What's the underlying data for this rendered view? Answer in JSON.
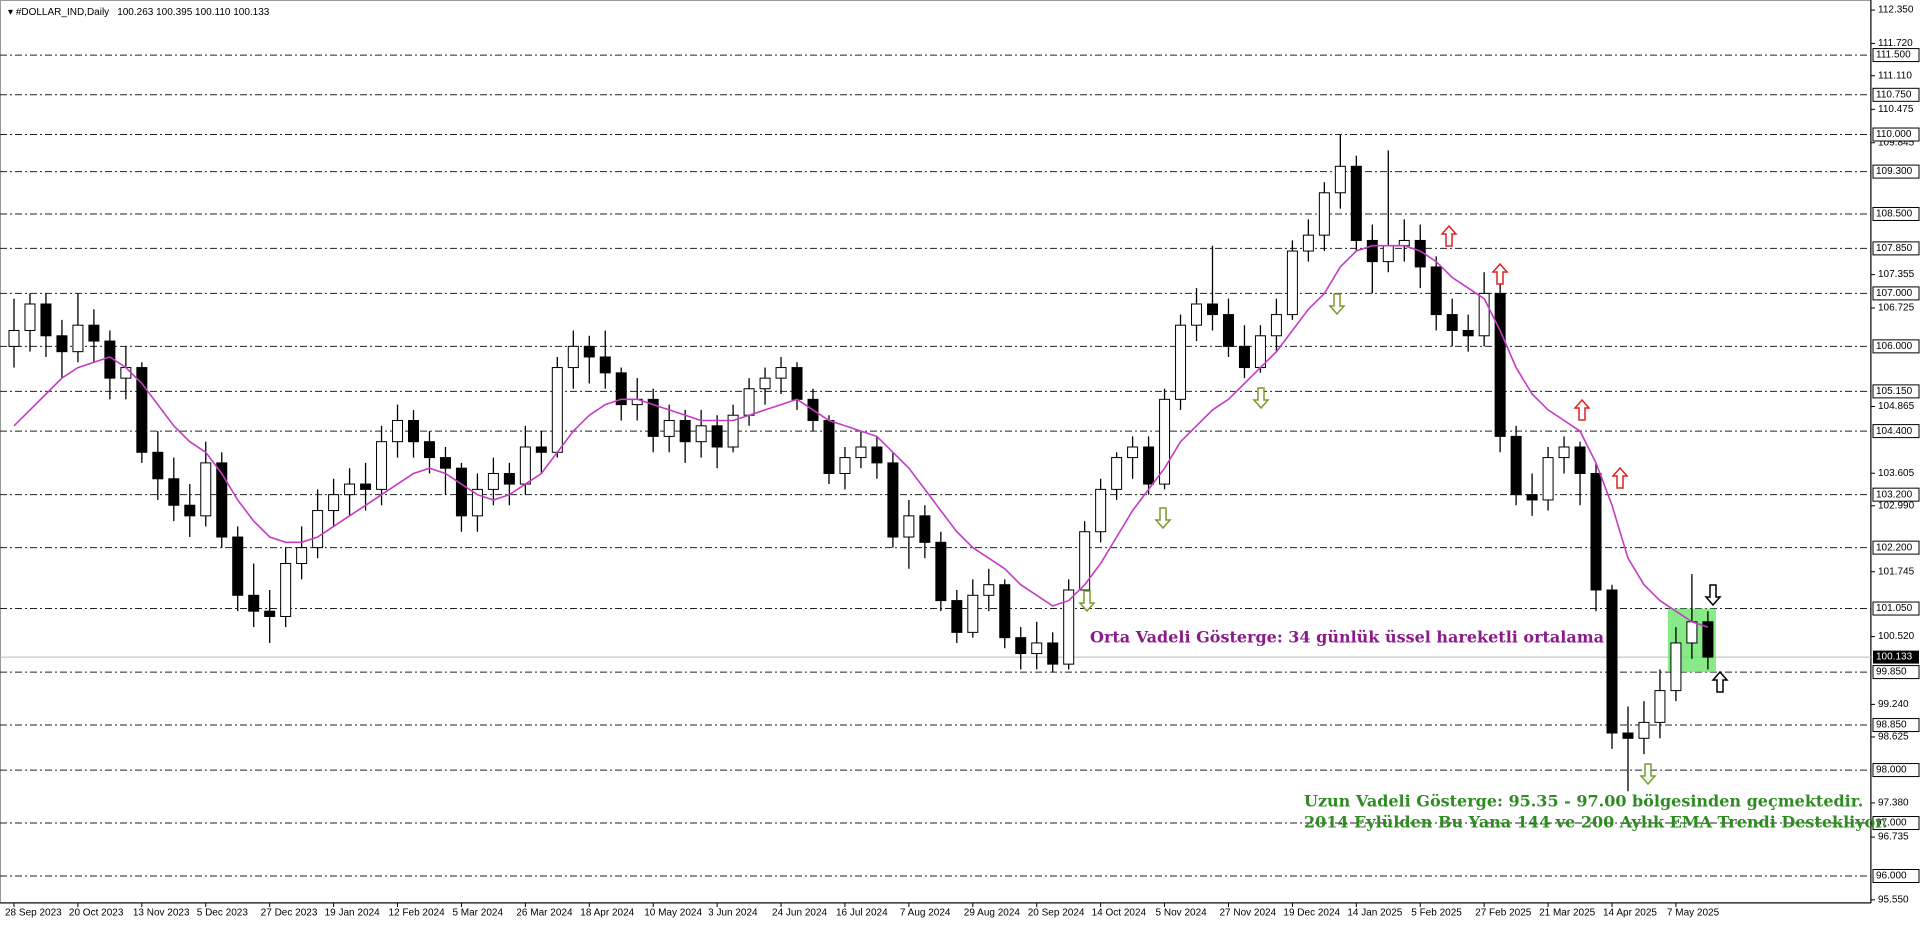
{
  "chart_data": {
    "type": "candlestick",
    "title": "#DOLLAR_IND,Daily",
    "subtitle": "100.263 100.395 100.110 100.133",
    "categories": [
      "28 Sep 2023",
      null,
      null,
      null,
      "20 Oct 2023",
      null,
      null,
      null,
      "13 Nov 2023",
      null,
      null,
      null,
      "5 Dec 2023",
      null,
      null,
      null,
      "27 Dec 2023",
      null,
      null,
      null,
      "19 Jan 2024",
      null,
      null,
      null,
      "12 Feb 2024",
      null,
      null,
      null,
      "5 Mar 2024",
      null,
      null,
      null,
      "26 Mar 2024",
      null,
      null,
      null,
      "18 Apr 2024",
      null,
      null,
      null,
      "10 May 2024",
      null,
      null,
      null,
      "3 Jun 2024",
      null,
      null,
      null,
      "24 Jun 2024",
      null,
      null,
      null,
      "16 Jul 2024",
      null,
      null,
      null,
      "7 Aug 2024",
      null,
      null,
      null,
      "29 Aug 2024",
      null,
      null,
      null,
      "20 Sep 2024",
      null,
      null,
      null,
      "14 Oct 2024",
      null,
      null,
      null,
      "5 Nov 2024",
      null,
      null,
      null,
      "27 Nov 2024",
      null,
      null,
      null,
      "19 Dec 2024",
      null,
      null,
      null,
      "14 Jan 2025",
      null,
      null,
      null,
      "5 Feb 2025",
      null,
      null,
      null,
      "27 Feb 2025",
      null,
      null,
      null,
      "21 Mar 2025",
      null,
      null,
      null,
      "14 Apr 2025",
      null,
      null,
      null,
      "7 May 2025",
      null,
      null
    ],
    "ohlc": [
      [
        106.0,
        106.9,
        105.6,
        106.3
      ],
      [
        106.3,
        107.0,
        105.9,
        106.8
      ],
      [
        106.8,
        107.0,
        105.8,
        106.2
      ],
      [
        106.2,
        106.5,
        105.4,
        105.9
      ],
      [
        105.9,
        107.0,
        105.7,
        106.4
      ],
      [
        106.4,
        106.7,
        105.7,
        106.1
      ],
      [
        106.1,
        106.3,
        105.0,
        105.4
      ],
      [
        105.4,
        106.0,
        105.0,
        105.6
      ],
      [
        105.6,
        105.7,
        103.8,
        104.0
      ],
      [
        104.0,
        104.4,
        103.1,
        103.5
      ],
      [
        103.5,
        103.9,
        102.7,
        103.0
      ],
      [
        103.0,
        103.4,
        102.4,
        102.8
      ],
      [
        102.8,
        104.2,
        102.6,
        103.8
      ],
      [
        103.8,
        104.0,
        102.2,
        102.4
      ],
      [
        102.4,
        102.6,
        101.0,
        101.3
      ],
      [
        101.3,
        101.9,
        100.7,
        101.0
      ],
      [
        101.0,
        101.4,
        100.4,
        100.9
      ],
      [
        100.9,
        102.2,
        100.7,
        101.9
      ],
      [
        101.9,
        102.6,
        101.6,
        102.2
      ],
      [
        102.2,
        103.3,
        102.0,
        102.9
      ],
      [
        102.9,
        103.5,
        102.6,
        103.2
      ],
      [
        103.2,
        103.7,
        102.8,
        103.4
      ],
      [
        103.4,
        103.8,
        102.9,
        103.3
      ],
      [
        103.3,
        104.5,
        103.0,
        104.2
      ],
      [
        104.2,
        104.9,
        103.9,
        104.6
      ],
      [
        104.6,
        104.8,
        103.9,
        104.2
      ],
      [
        104.2,
        104.4,
        103.6,
        103.9
      ],
      [
        103.9,
        104.1,
        103.2,
        103.7
      ],
      [
        103.7,
        103.8,
        102.5,
        102.8
      ],
      [
        102.8,
        103.6,
        102.5,
        103.3
      ],
      [
        103.3,
        103.9,
        103.0,
        103.6
      ],
      [
        103.6,
        103.8,
        103.0,
        103.4
      ],
      [
        103.4,
        104.5,
        103.2,
        104.1
      ],
      [
        104.1,
        104.4,
        103.6,
        104.0
      ],
      [
        104.0,
        105.8,
        103.9,
        105.6
      ],
      [
        105.6,
        106.3,
        105.2,
        106.0
      ],
      [
        106.0,
        106.2,
        105.3,
        105.8
      ],
      [
        105.8,
        106.3,
        105.2,
        105.5
      ],
      [
        105.5,
        105.6,
        104.6,
        104.9
      ],
      [
        104.9,
        105.4,
        104.6,
        105.0
      ],
      [
        105.0,
        105.2,
        104.0,
        104.3
      ],
      [
        104.3,
        104.9,
        104.0,
        104.6
      ],
      [
        104.6,
        104.8,
        103.8,
        104.2
      ],
      [
        104.2,
        104.8,
        103.9,
        104.5
      ],
      [
        104.5,
        104.7,
        103.7,
        104.1
      ],
      [
        104.1,
        104.9,
        104.0,
        104.7
      ],
      [
        104.7,
        105.4,
        104.5,
        105.2
      ],
      [
        105.2,
        105.6,
        104.9,
        105.4
      ],
      [
        105.4,
        105.8,
        105.1,
        105.6
      ],
      [
        105.6,
        105.7,
        104.8,
        105.0
      ],
      [
        105.0,
        105.2,
        104.4,
        104.6
      ],
      [
        104.6,
        104.7,
        103.4,
        103.6
      ],
      [
        103.6,
        104.1,
        103.3,
        103.9
      ],
      [
        103.9,
        104.4,
        103.7,
        104.1
      ],
      [
        104.1,
        104.3,
        103.5,
        103.8
      ],
      [
        103.8,
        104.0,
        102.2,
        102.4
      ],
      [
        102.4,
        103.1,
        101.8,
        102.8
      ],
      [
        102.8,
        103.0,
        102.0,
        102.3
      ],
      [
        102.3,
        102.5,
        101.0,
        101.2
      ],
      [
        101.2,
        101.4,
        100.4,
        100.6
      ],
      [
        100.6,
        101.6,
        100.5,
        101.3
      ],
      [
        101.3,
        101.8,
        101.0,
        101.5
      ],
      [
        101.5,
        101.6,
        100.3,
        100.5
      ],
      [
        100.5,
        100.7,
        99.9,
        100.2
      ],
      [
        100.2,
        100.8,
        99.9,
        100.4
      ],
      [
        100.4,
        100.6,
        99.85,
        100.0
      ],
      [
        100.0,
        101.6,
        99.9,
        101.4
      ],
      [
        101.4,
        102.7,
        101.2,
        102.5
      ],
      [
        102.5,
        103.5,
        102.3,
        103.3
      ],
      [
        103.3,
        104.0,
        103.1,
        103.9
      ],
      [
        103.9,
        104.3,
        103.5,
        104.1
      ],
      [
        104.1,
        104.3,
        103.2,
        103.4
      ],
      [
        103.4,
        105.2,
        103.3,
        105.0
      ],
      [
        105.0,
        106.6,
        104.8,
        106.4
      ],
      [
        106.4,
        107.1,
        106.1,
        106.8
      ],
      [
        106.8,
        107.9,
        106.3,
        106.6
      ],
      [
        106.6,
        106.9,
        105.8,
        106.0
      ],
      [
        106.0,
        106.4,
        105.4,
        105.6
      ],
      [
        105.6,
        106.4,
        105.5,
        106.2
      ],
      [
        106.2,
        106.9,
        105.9,
        106.6
      ],
      [
        106.6,
        108.0,
        106.5,
        107.8
      ],
      [
        107.8,
        108.4,
        107.6,
        108.1
      ],
      [
        108.1,
        109.1,
        107.8,
        108.9
      ],
      [
        108.9,
        110.0,
        108.6,
        109.4
      ],
      [
        109.4,
        109.6,
        107.8,
        108.0
      ],
      [
        108.0,
        108.3,
        107.0,
        107.6
      ],
      [
        107.6,
        109.7,
        107.4,
        107.9
      ],
      [
        107.9,
        108.4,
        107.6,
        108.0
      ],
      [
        108.0,
        108.3,
        107.1,
        107.5
      ],
      [
        107.5,
        107.7,
        106.3,
        106.6
      ],
      [
        106.6,
        106.9,
        106.0,
        106.3
      ],
      [
        106.3,
        106.6,
        105.9,
        106.2
      ],
      [
        106.2,
        107.4,
        106.0,
        107.0
      ],
      [
        107.0,
        107.2,
        104.0,
        104.3
      ],
      [
        104.3,
        104.5,
        103.0,
        103.2
      ],
      [
        103.2,
        103.6,
        102.8,
        103.1
      ],
      [
        103.1,
        104.1,
        102.9,
        103.9
      ],
      [
        103.9,
        104.3,
        103.6,
        104.1
      ],
      [
        104.1,
        104.2,
        103.0,
        103.6
      ],
      [
        103.6,
        103.8,
        101.0,
        101.4
      ],
      [
        101.4,
        101.5,
        98.4,
        98.7
      ],
      [
        98.7,
        99.2,
        97.6,
        98.6
      ],
      [
        98.6,
        99.3,
        98.3,
        98.9
      ],
      [
        98.9,
        99.9,
        98.6,
        99.5
      ],
      [
        99.5,
        100.7,
        99.3,
        100.4
      ],
      [
        100.4,
        101.7,
        100.1,
        100.8
      ],
      [
        100.8,
        101.0,
        99.9,
        100.133
      ]
    ],
    "ema": {
      "color": "#c43cc4",
      "values": [
        104.5,
        104.8,
        105.1,
        105.4,
        105.6,
        105.7,
        105.8,
        105.6,
        105.3,
        104.9,
        104.5,
        104.2,
        104.0,
        103.6,
        103.1,
        102.7,
        102.4,
        102.3,
        102.3,
        102.4,
        102.6,
        102.8,
        103.0,
        103.2,
        103.4,
        103.6,
        103.7,
        103.6,
        103.4,
        103.2,
        103.1,
        103.2,
        103.4,
        103.6,
        104.0,
        104.4,
        104.7,
        104.9,
        105.0,
        105.0,
        104.9,
        104.8,
        104.7,
        104.6,
        104.6,
        104.6,
        104.7,
        104.8,
        104.9,
        105.0,
        104.8,
        104.6,
        104.5,
        104.4,
        104.3,
        104.0,
        103.7,
        103.3,
        102.9,
        102.5,
        102.2,
        102.0,
        101.8,
        101.5,
        101.3,
        101.1,
        101.2,
        101.5,
        101.9,
        102.4,
        102.9,
        103.3,
        103.7,
        104.2,
        104.5,
        104.8,
        105.0,
        105.3,
        105.6,
        105.9,
        106.3,
        106.7,
        107.0,
        107.5,
        107.8,
        107.9,
        107.9,
        107.9,
        107.8,
        107.6,
        107.3,
        107.1,
        106.9,
        106.3,
        105.6,
        105.1,
        104.8,
        104.6,
        104.4,
        103.8,
        103.0,
        102.0,
        101.5,
        101.2,
        101.0,
        100.8,
        100.7
      ]
    },
    "ylim": [
      95.49,
      112.54
    ],
    "yticks": [
      {
        "value": 112.35,
        "label": "112.350"
      },
      {
        "value": 111.72,
        "label": "111.720"
      },
      {
        "value": 111.11,
        "label": "111.110"
      },
      {
        "value": 110.475,
        "label": "110.475"
      },
      {
        "value": 109.845,
        "label": "109.845"
      },
      {
        "value": 107.355,
        "label": "107.355"
      },
      {
        "value": 106.725,
        "label": "106.725"
      },
      {
        "value": 104.865,
        "label": "104.865"
      },
      {
        "value": 103.605,
        "label": "103.605"
      },
      {
        "value": 102.99,
        "label": "102.990"
      },
      {
        "value": 101.745,
        "label": "101.745"
      },
      {
        "value": 100.52,
        "label": "100.520"
      },
      {
        "value": 99.24,
        "label": "99.240"
      },
      {
        "value": 98.625,
        "label": "98.625"
      },
      {
        "value": 97.38,
        "label": "97.380"
      },
      {
        "value": 96.735,
        "label": "96.735"
      },
      {
        "value": 95.55,
        "label": "95.550"
      }
    ],
    "levels": [
      {
        "value": 111.5,
        "label": "111.500"
      },
      {
        "value": 110.75,
        "label": "110.750"
      },
      {
        "value": 110.0,
        "label": "110.000"
      },
      {
        "value": 109.3,
        "label": "109.300"
      },
      {
        "value": 108.5,
        "label": "108.500"
      },
      {
        "value": 107.85,
        "label": "107.850"
      },
      {
        "value": 107.0,
        "label": "107.000"
      },
      {
        "value": 106.0,
        "label": "106.000"
      },
      {
        "value": 105.15,
        "label": "105.150"
      },
      {
        "value": 104.4,
        "label": "104.400"
      },
      {
        "value": 103.2,
        "label": "103.200"
      },
      {
        "value": 102.2,
        "label": "102.200"
      },
      {
        "value": 101.05,
        "label": "101.050"
      },
      {
        "value": 99.85,
        "label": "99.850"
      },
      {
        "value": 98.85,
        "label": "98.850"
      },
      {
        "value": 98.0,
        "label": "98.000"
      },
      {
        "value": 97.0,
        "label": "97.000"
      },
      {
        "value": 96.0,
        "label": "96.000"
      }
    ],
    "current_price": {
      "value": 100.133,
      "label": "100.133"
    },
    "zone": [
      99.85,
      101.05
    ],
    "annotations": [
      "Orta Vadeli Gösterge: 34 günlük üssel hareketli ortalama",
      "Uzun Vadeli Gösterge: 95.35 - 97.00 bölgesinden geçmektedir.",
      "2014 Eylülden Bu Yana 144 ve 200 Aylık EMA Trendi Destekliyor."
    ]
  }
}
